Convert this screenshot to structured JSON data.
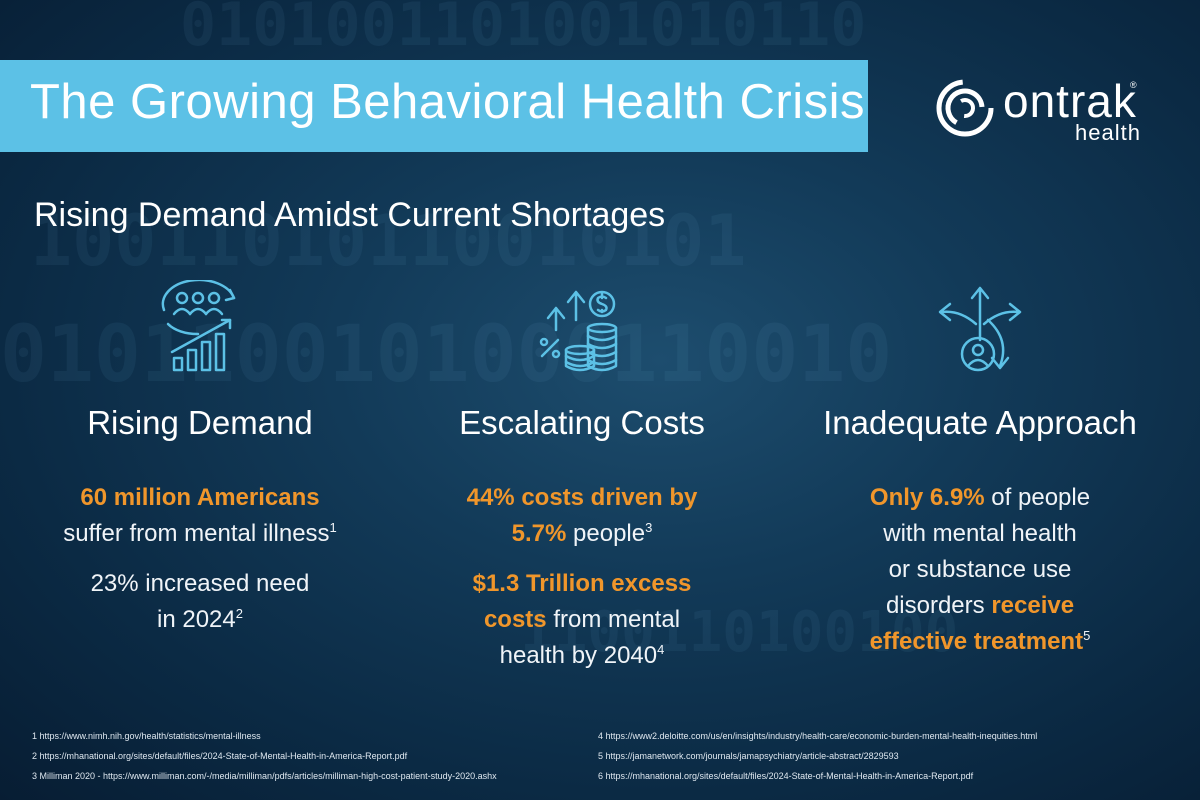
{
  "banner": {
    "title": "The Growing Behavioral Health Crisis"
  },
  "logo": {
    "word": "ontrak",
    "trademark": "®",
    "sub": "health"
  },
  "subtitle": "Rising Demand Amidst Current Shortages",
  "background_digits": [
    "0101001101001010110",
    "10011010110010101",
    "0101100101000110010",
    "1100110100100"
  ],
  "columns": [
    {
      "icon": "people-growth-chart-icon",
      "title": "Rising Demand",
      "p1": {
        "hl": "60 million Americans",
        "text": "suffer from mental illness",
        "sup": "1"
      },
      "p2": {
        "line1": "23% increased need",
        "line2": "in 2024",
        "sup": "2"
      }
    },
    {
      "icon": "costs-coins-icon",
      "title": "Escalating Costs",
      "p1": {
        "hl1": "44% costs driven by",
        "hl2": "5.7%",
        "text": " people",
        "sup": "3"
      },
      "p2": {
        "hl1": "$1.3 Trillion excess",
        "hl2": "costs",
        "text1": " from mental",
        "text2": "health by 2040",
        "sup": "4"
      }
    },
    {
      "icon": "person-arrows-icon",
      "title": "Inadequate Approach",
      "p1": {
        "hl1": "Only 6.9%",
        "text1": " of people",
        "text2": "with mental health",
        "text3": "or substance use",
        "text4": "disorders ",
        "hl2": "receive",
        "hl3": "effective treatment",
        "sup": "5"
      }
    }
  ],
  "footnotes_left": [
    "1 https://www.nimh.nih.gov/health/statistics/mental-illness",
    "2 https://mhanational.org/sites/default/files/2024-State-of-Mental-Health-in-America-Report.pdf",
    "3 Milliman 2020 - https://www.milliman.com/-/media/milliman/pdfs/articles/milliman-high-cost-patient-study-2020.ashx"
  ],
  "footnotes_right": [
    "4 https://www2.deloitte.com/us/en/insights/industry/health-care/economic-burden-mental-health-inequities.html",
    "5 https://jamanetwork.com/journals/jamapsychiatry/article-abstract/2829593",
    "6 https://mhanational.org/sites/default/files/2024-State-of-Mental-Health-in-America-Report.pdf"
  ],
  "colors": {
    "banner": "#5cc1e6",
    "highlight": "#f0962b",
    "icon": "#5cc1e6"
  }
}
